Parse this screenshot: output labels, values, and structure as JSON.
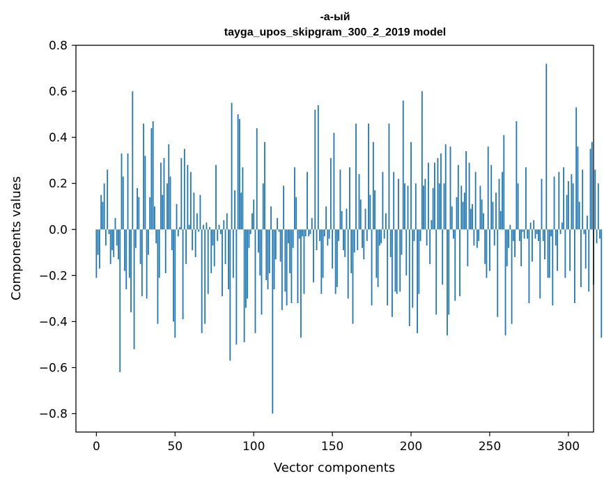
{
  "chart_data": {
    "type": "bar",
    "title": "-а-ый",
    "subtitle": "tayga_upos_skipgram_300_2_2019 model",
    "xlabel": "Vector components",
    "ylabel": "Components values",
    "xlim": [
      -13,
      316
    ],
    "ylim": [
      -0.88,
      0.8
    ],
    "xticks": [
      0,
      50,
      100,
      150,
      200,
      250,
      300
    ],
    "yticks": [
      -0.8,
      -0.6,
      -0.4,
      -0.2,
      0.0,
      0.2,
      0.4,
      0.6,
      0.8
    ],
    "xtick_labels": [
      "0",
      "50",
      "100",
      "150",
      "200",
      "250",
      "300"
    ],
    "ytick_labels": [
      "−0.8",
      "−0.6",
      "−0.4",
      "−0.2",
      "0.0",
      "0.2",
      "0.4",
      "0.6",
      "0.8"
    ],
    "grid": false,
    "bar_color": "#1f77b4",
    "values": [
      -0.21,
      -0.11,
      -0.17,
      0.15,
      0.12,
      0.2,
      -0.07,
      0.26,
      -0.02,
      -0.15,
      -0.09,
      -0.12,
      0.05,
      -0.07,
      -0.13,
      -0.62,
      0.33,
      0.23,
      -0.18,
      -0.26,
      0.33,
      -0.21,
      -0.36,
      0.6,
      -0.52,
      -0.08,
      0.18,
      0.14,
      -0.15,
      -0.29,
      0.46,
      0.32,
      -0.3,
      -0.11,
      0.14,
      0.44,
      0.47,
      0.1,
      -0.06,
      -0.41,
      -0.21,
      0.29,
      0.15,
      0.31,
      -0.19,
      0.2,
      0.37,
      0.23,
      -0.09,
      -0.4,
      -0.47,
      0.11,
      -0.03,
      0.01,
      0.31,
      -0.39,
      0.35,
      -0.15,
      0.28,
      0.02,
      0.25,
      -0.09,
      0.16,
      -0.12,
      0.07,
      -0.01,
      0.15,
      -0.45,
      0.02,
      -0.41,
      0.03,
      -0.28,
      0.01,
      -0.19,
      -0.07,
      -0.16,
      0.28,
      -0.05,
      0.02,
      -0.02,
      -0.29,
      0.04,
      -0.15,
      0.07,
      -0.26,
      -0.57,
      0.55,
      -0.21,
      0.17,
      -0.5,
      0.5,
      0.48,
      0.16,
      0.27,
      -0.49,
      -0.34,
      -0.3,
      -0.08,
      -0.02,
      0.07,
      0.13,
      -0.45,
      0.44,
      -0.1,
      -0.2,
      -0.37,
      0.2,
      0.38,
      -0.22,
      -0.26,
      -0.19,
      0.1,
      -0.8,
      -0.26,
      -0.13,
      0.05,
      -0.01,
      -0.14,
      -0.35,
      0.19,
      -0.27,
      -0.33,
      -0.06,
      -0.19,
      -0.32,
      -0.08,
      0.27,
      0.14,
      -0.32,
      -0.04,
      -0.47,
      -0.03,
      -0.28,
      -0.03,
      0.25,
      -0.03,
      -0.02,
      0.05,
      -0.23,
      0.52,
      -0.09,
      0.54,
      -0.05,
      -0.28,
      -0.21,
      -0.03,
      0.1,
      -0.07,
      -0.04,
      0.31,
      -0.17,
      0.42,
      -0.28,
      -0.25,
      -0.05,
      0.26,
      0.08,
      -0.09,
      -0.12,
      0.09,
      -0.3,
      0.27,
      -0.19,
      -0.41,
      -0.1,
      0.46,
      -0.09,
      0.24,
      0.13,
      -0.08,
      -0.13,
      0.09,
      -0.05,
      0.46,
      0.15,
      -0.33,
      0.38,
      0.17,
      -0.21,
      -0.25,
      -0.07,
      -0.06,
      0.25,
      -0.04,
      0.07,
      -0.33,
      0.46,
      -0.12,
      -0.38,
      0.25,
      -0.27,
      -0.28,
      0.22,
      -0.27,
      -0.11,
      0.56,
      0.2,
      -0.2,
      0.19,
      -0.42,
      0.38,
      -0.34,
      -0.05,
      0.2,
      -0.45,
      -0.28,
      -0.05,
      0.6,
      0.19,
      0.22,
      -0.07,
      0.29,
      -0.15,
      0.04,
      0.18,
      0.29,
      -0.37,
      0.31,
      0.2,
      0.33,
      -0.24,
      0.2,
      0.37,
      -0.46,
      -0.37,
      0.36,
      0.1,
      -0.04,
      -0.31,
      0.14,
      0.28,
      -0.29,
      0.19,
      0.12,
      0.16,
      0.34,
      -0.16,
      0.29,
      0.09,
      0.11,
      -0.07,
      0.25,
      -0.08,
      -0.05,
      0.19,
      0.13,
      0.07,
      -0.15,
      -0.21,
      0.36,
      -0.18,
      0.28,
      0.12,
      -0.07,
      0.16,
      -0.38,
      0.22,
      0.08,
      0.25,
      0.41,
      -0.46,
      -0.16,
      -0.08,
      0.02,
      -0.41,
      -0.05,
      -0.12,
      0.47,
      0.2,
      -0.05,
      -0.16,
      -0.01,
      -0.04,
      0.27,
      -0.04,
      -0.32,
      0.03,
      -0.14,
      0.04,
      -0.04,
      -0.02,
      -0.05,
      -0.3,
      0.22,
      -0.05,
      -0.13,
      0.72,
      -0.21,
      -0.21,
      -0.03,
      -0.33,
      0.23,
      -0.07,
      -0.18,
      0.25,
      -0.02,
      0.03,
      0.27,
      -0.21,
      0.15,
      0.21,
      -0.18,
      0.24,
      0.2,
      -0.32,
      0.53,
      0.36,
      0.12,
      -0.25,
      0.26,
      -0.02,
      -0.17,
      0.06,
      -0.27,
      0.35,
      0.38,
      -0.24,
      0.26,
      -0.06,
      0.2,
      -0.04,
      -0.47
    ]
  }
}
